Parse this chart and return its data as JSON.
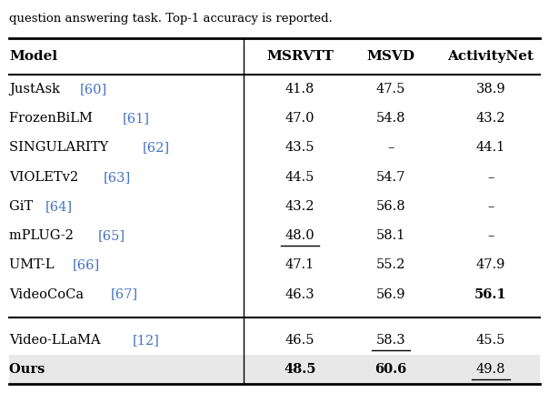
{
  "caption": "question answering task. Top-1 accuracy is reported.",
  "headers": [
    "Model",
    "MSRVTT",
    "MSVD",
    "ActivityNet"
  ],
  "rows": [
    {
      "model": "JustAsk",
      "ref": "60",
      "msrvtt": "41.8",
      "msvd": "47.5",
      "actnet": "38.9",
      "bold_msrvtt": false,
      "bold_msvd": false,
      "bold_actnet": false,
      "under_msrvtt": false,
      "under_msvd": false,
      "under_actnet": false,
      "bold_model": false
    },
    {
      "model": "FrozenBiLM",
      "ref": "61",
      "msrvtt": "47.0",
      "msvd": "54.8",
      "actnet": "43.2",
      "bold_msrvtt": false,
      "bold_msvd": false,
      "bold_actnet": false,
      "under_msrvtt": false,
      "under_msvd": false,
      "under_actnet": false,
      "bold_model": false
    },
    {
      "model": "SINGULARITY",
      "ref": "62",
      "msrvtt": "43.5",
      "msvd": "–",
      "actnet": "44.1",
      "bold_msrvtt": false,
      "bold_msvd": false,
      "bold_actnet": false,
      "under_msrvtt": false,
      "under_msvd": false,
      "under_actnet": false,
      "bold_model": false
    },
    {
      "model": "VIOLETv2",
      "ref": "63",
      "msrvtt": "44.5",
      "msvd": "54.7",
      "actnet": "–",
      "bold_msrvtt": false,
      "bold_msvd": false,
      "bold_actnet": false,
      "under_msrvtt": false,
      "under_msvd": false,
      "under_actnet": false,
      "bold_model": false
    },
    {
      "model": "GiT",
      "ref": "64",
      "msrvtt": "43.2",
      "msvd": "56.8",
      "actnet": "–",
      "bold_msrvtt": false,
      "bold_msvd": false,
      "bold_actnet": false,
      "under_msrvtt": false,
      "under_msvd": false,
      "under_actnet": false,
      "bold_model": false
    },
    {
      "model": "mPLUG-2",
      "ref": "65",
      "msrvtt": "48.0",
      "msvd": "58.1",
      "actnet": "–",
      "bold_msrvtt": false,
      "bold_msvd": false,
      "bold_actnet": false,
      "under_msrvtt": true,
      "under_msvd": false,
      "under_actnet": false,
      "bold_model": false
    },
    {
      "model": "UMT-L",
      "ref": "66",
      "msrvtt": "47.1",
      "msvd": "55.2",
      "actnet": "47.9",
      "bold_msrvtt": false,
      "bold_msvd": false,
      "bold_actnet": false,
      "under_msrvtt": false,
      "under_msvd": false,
      "under_actnet": false,
      "bold_model": false
    },
    {
      "model": "VideoCoCa",
      "ref": "67",
      "msrvtt": "46.3",
      "msvd": "56.9",
      "actnet": "56.1",
      "bold_msrvtt": false,
      "bold_msvd": false,
      "bold_actnet": true,
      "under_msrvtt": false,
      "under_msvd": false,
      "under_actnet": false,
      "bold_model": false
    }
  ],
  "rows2": [
    {
      "model": "Video-LLaMA",
      "ref": "12",
      "msrvtt": "46.5",
      "msvd": "58.3",
      "actnet": "45.5",
      "bold_msrvtt": false,
      "bold_msvd": false,
      "bold_actnet": false,
      "under_msrvtt": false,
      "under_msvd": true,
      "under_actnet": false,
      "bold_model": false
    },
    {
      "model": "Ours",
      "ref": "",
      "msrvtt": "48.5",
      "msvd": "60.6",
      "actnet": "49.8",
      "bold_msrvtt": true,
      "bold_msvd": true,
      "bold_actnet": false,
      "under_msrvtt": false,
      "under_msvd": false,
      "under_actnet": true,
      "bold_model": true
    }
  ],
  "ref_color": "#4472C4",
  "ours_bg": "#e8e8e8",
  "bg_color": "#ffffff",
  "font_size": 10.5,
  "header_font_size": 11.0,
  "caption_font_size": 9.5
}
